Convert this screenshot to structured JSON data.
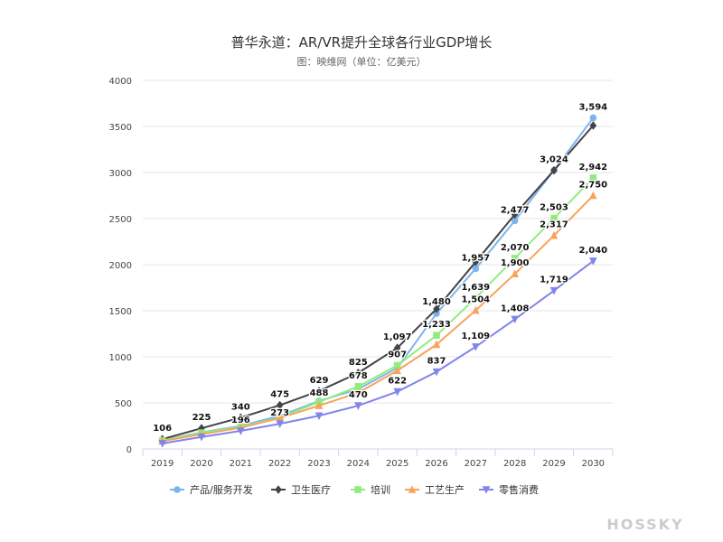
{
  "chart_data": {
    "type": "line",
    "title": "普华永道：AR/VR提升全球各行业GDP增长",
    "subtitle": "图：映维网（单位：亿美元）",
    "x": [
      "2019",
      "2020",
      "2021",
      "2022",
      "2023",
      "2024",
      "2025",
      "2026",
      "2027",
      "2028",
      "2029",
      "2030"
    ],
    "ylim": [
      0,
      4000
    ],
    "yticks": [
      0,
      500,
      1000,
      1500,
      2000,
      2500,
      3000,
      3500,
      4000
    ],
    "grid": true,
    "legend": "bottom",
    "labeled_series": "卫生医疗",
    "series": [
      {
        "name": "产品/服务开发",
        "color": "#7cb5ec",
        "marker": "circle",
        "values": [
          95,
          180,
          250,
          360,
          520,
          650,
          880,
          1470,
          1957,
          2477,
          3024,
          3594
        ]
      },
      {
        "name": "卫生医疗",
        "color": "#434348",
        "marker": "diamond",
        "values": [
          106,
          225,
          340,
          475,
          629,
          825,
          1097,
          1520,
          2030,
          2545,
          3024,
          3510
        ]
      },
      {
        "name": "培训",
        "color": "#90ed7d",
        "marker": "square",
        "values": [
          92,
          175,
          240,
          340,
          510,
          678,
          907,
          1233,
          1639,
          2070,
          2503,
          2942
        ]
      },
      {
        "name": "工艺生产",
        "color": "#f7a35c",
        "marker": "triangle",
        "values": [
          85,
          160,
          230,
          335,
          470,
          610,
          850,
          1133,
          1504,
          1900,
          2317,
          2750
        ]
      },
      {
        "name": "零售消费",
        "color": "#8085e9",
        "marker": "triangle-down",
        "values": [
          60,
          130,
          196,
          273,
          360,
          470,
          622,
          837,
          1109,
          1408,
          1719,
          2040
        ]
      }
    ],
    "annotations": [
      {
        "x": "2019",
        "text": "106"
      },
      {
        "x": "2020",
        "text": "225"
      },
      {
        "x": "2021",
        "text": "340"
      },
      {
        "x": "2021",
        "text": "196"
      },
      {
        "x": "2022",
        "text": "475"
      },
      {
        "x": "2022",
        "text": "273"
      },
      {
        "x": "2023",
        "text": "629"
      },
      {
        "x": "2023",
        "text": "488"
      },
      {
        "x": "2024",
        "text": "825"
      },
      {
        "x": "2024",
        "text": "678"
      },
      {
        "x": "2024",
        "text": "470"
      },
      {
        "x": "2025",
        "text": "1,097"
      },
      {
        "x": "2025",
        "text": "907"
      },
      {
        "x": "2025",
        "text": "622"
      },
      {
        "x": "2026",
        "text": "1,480"
      },
      {
        "x": "2026",
        "text": "1,233"
      },
      {
        "x": "2026",
        "text": "837"
      },
      {
        "x": "2027",
        "text": "1,957"
      },
      {
        "x": "2027",
        "text": "1,639"
      },
      {
        "x": "2027",
        "text": "1,504"
      },
      {
        "x": "2027",
        "text": "1,109"
      },
      {
        "x": "2028",
        "text": "2,477"
      },
      {
        "x": "2028",
        "text": "2,070"
      },
      {
        "x": "2028",
        "text": "1,900"
      },
      {
        "x": "2028",
        "text": "1,408"
      },
      {
        "x": "2029",
        "text": "3,024"
      },
      {
        "x": "2029",
        "text": "2,503"
      },
      {
        "x": "2029",
        "text": "2,317"
      },
      {
        "x": "2029",
        "text": "1,719"
      },
      {
        "x": "2030",
        "text": "3,594"
      },
      {
        "x": "2030",
        "text": "2,942"
      },
      {
        "x": "2030",
        "text": "2,750"
      },
      {
        "x": "2030",
        "text": "2,040"
      }
    ]
  },
  "annotation_values": [
    106,
    225,
    340,
    196,
    475,
    273,
    629,
    488,
    825,
    678,
    470,
    1097,
    907,
    622,
    1480,
    1233,
    837,
    1957,
    1639,
    1504,
    1109,
    2477,
    2070,
    1900,
    1408,
    3024,
    2503,
    2317,
    1719,
    3594,
    2942,
    2750,
    2040
  ],
  "watermark": "HOSSKY"
}
